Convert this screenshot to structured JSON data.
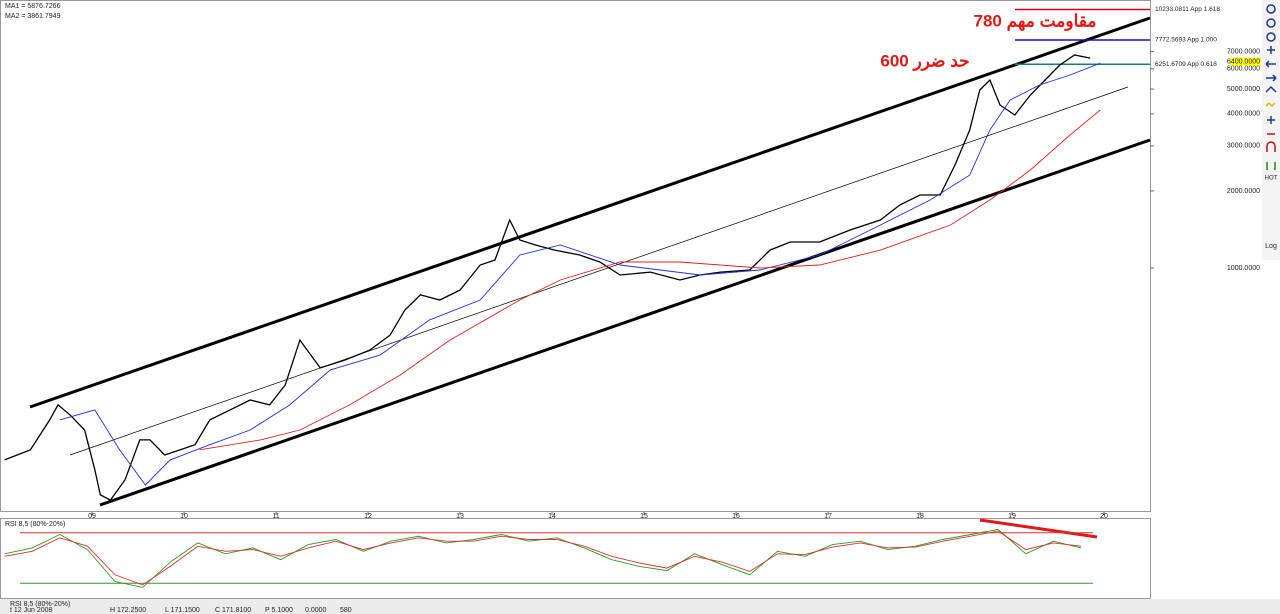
{
  "chart_data": [
    {
      "type": "line",
      "log_scale": true,
      "xlim": [
        2008,
        2020.5
      ],
      "xticks": [
        {
          "value": 2009,
          "label": "09"
        },
        {
          "value": 2010,
          "label": "10"
        },
        {
          "value": 2011,
          "label": "11"
        },
        {
          "value": 2012,
          "label": "12"
        },
        {
          "value": 2013,
          "label": "13"
        },
        {
          "value": 2014,
          "label": "14"
        },
        {
          "value": 2015,
          "label": "15"
        },
        {
          "value": 2016,
          "label": "16"
        },
        {
          "value": 2017,
          "label": "17"
        },
        {
          "value": 2018,
          "label": "18"
        },
        {
          "value": 2019,
          "label": "19"
        },
        {
          "value": 2020,
          "label": "20"
        }
      ],
      "ylim": [
        111.4,
        11140
      ],
      "yticks": [
        {
          "value": 1000,
          "label": "1000.0000"
        },
        {
          "value": 2000,
          "label": "2000.0000"
        },
        {
          "value": 3000,
          "label": "3000.0000"
        },
        {
          "value": 4000,
          "label": "4000.0000"
        },
        {
          "value": 5000,
          "label": "5000.0000"
        },
        {
          "value": 6000,
          "label": "6000.0000"
        },
        {
          "value": 7000,
          "label": "7000.0000"
        }
      ],
      "series": [
        {
          "color": "#000000",
          "x": [
            2008.05,
            2008.33,
            2008.54,
            2008.63,
            2008.76,
            2008.92,
            2009.03,
            2009.09,
            2009.2,
            2009.36,
            2009.52,
            2009.63,
            2009.79,
            2009.96,
            2010.12,
            2010.28,
            2010.5,
            2010.72,
            2010.93,
            2011.1,
            2011.26,
            2011.48,
            2011.75,
            2012.02,
            2012.24,
            2012.4,
            2012.57,
            2012.78,
            2013.0,
            2013.22,
            2013.38,
            2013.54,
            2013.65,
            2013.82,
            2014.03,
            2014.3,
            2014.52,
            2014.74,
            2015.07,
            2015.39,
            2015.61,
            2015.83,
            2016.15,
            2016.37,
            2016.59,
            2016.91,
            2017.24,
            2017.57,
            2017.78,
            2018.0,
            2018.22,
            2018.38,
            2018.54,
            2018.65,
            2018.76,
            2018.87,
            2019.03,
            2019.2,
            2019.36,
            2019.52,
            2019.68,
            2019.85
          ],
          "values": [
            178,
            195,
            255,
            292,
            267,
            233,
            163,
            130,
            124,
            149,
            213,
            213,
            186,
            195,
            204,
            255,
            279,
            305,
            292,
            349,
            523,
            407,
            437,
            478,
            547,
            685,
            785,
            750,
            820,
            1027,
            1075,
            1540,
            1286,
            1230,
            1175,
            1124,
            1055,
            939,
            964,
            898,
            939,
            964,
            982,
            1175,
            1263,
            1263,
            1407,
            1540,
            1762,
            1928,
            1928,
            2525,
            3459,
            4958,
            5423,
            4333,
            3960,
            4740,
            5423,
            6208,
            6792,
            6607
          ]
        },
        {
          "name": "MA1 = 5876.7266",
          "color": "#2030d0",
          "x": [
            2008.65,
            2009.03,
            2009.3,
            2009.58,
            2009.85,
            2010.28,
            2010.72,
            2011.15,
            2011.59,
            2012.13,
            2012.67,
            2013.22,
            2013.65,
            2014.09,
            2014.74,
            2015.61,
            2016.26,
            2016.91,
            2017.57,
            2018.11,
            2018.54,
            2018.76,
            2018.98,
            2019.3,
            2019.63,
            2019.96
          ],
          "values": [
            255,
            279,
            195,
            142,
            178,
            204,
            233,
            292,
            400,
            457,
            627,
            750,
            1124,
            1230,
            1027,
            939,
            982,
            1124,
            1472,
            1843,
            2307,
            3459,
            4533,
            5188,
            5672,
            6310
          ]
        },
        {
          "name": "MA2 = 3861.7949",
          "color": "#e02020",
          "x": [
            2010.17,
            2010.83,
            2011.26,
            2011.8,
            2012.35,
            2012.89,
            2013.65,
            2014.09,
            2014.74,
            2015.39,
            2016.26,
            2016.91,
            2017.57,
            2018.33,
            2018.76,
            2019.2,
            2019.63,
            2019.96
          ],
          "values": [
            195,
            213,
            233,
            292,
            382,
            523,
            750,
            898,
            1055,
            1055,
            1000,
            1027,
            1175,
            1472,
            1843,
            2414,
            3307,
            4142
          ]
        }
      ],
      "levels": [
        {
          "value": 10233.0811,
          "label": "10233.0811 App 1.618",
          "color": "#e00000"
        },
        {
          "value": 7772.5693,
          "label": "7772.5693 App 1.000",
          "color": "#1010c0"
        },
        {
          "value": 6251.6709,
          "label": "6251.6709 App 0.618",
          "color": "#108080"
        }
      ],
      "current_price": {
        "value": 6400,
        "label": "6400.0000"
      },
      "annotations": [
        "780 مقاومت مهم",
        "600 حد ضرر"
      ]
    },
    {
      "type": "line",
      "title": "RSI 8,5 (80%-20%)",
      "xlim": [
        2008,
        2020.5
      ],
      "ylim": [
        0,
        100
      ],
      "x": [
        2008.05,
        2008.35,
        2008.65,
        2008.95,
        2009.25,
        2009.55,
        2009.85,
        2010.15,
        2010.45,
        2010.75,
        2011.05,
        2011.35,
        2011.65,
        2011.95,
        2012.25,
        2012.55,
        2012.85,
        2013.15,
        2013.45,
        2013.75,
        2014.05,
        2014.35,
        2014.65,
        2014.95,
        2015.25,
        2015.55,
        2015.85,
        2016.15,
        2016.45,
        2016.75,
        2017.05,
        2017.35,
        2017.65,
        2017.95,
        2018.25,
        2018.55,
        2018.85,
        2019.15,
        2019.45,
        2019.75
      ],
      "levels": [
        {
          "value": 80,
          "color": "#e03030"
        },
        {
          "value": 20,
          "color": "#2a9a2a"
        }
      ],
      "series": [
        {
          "color": "#2a9a2a",
          "values": [
            55,
            62,
            78,
            60,
            22,
            15,
            45,
            68,
            55,
            62,
            48,
            66,
            72,
            58,
            70,
            76,
            68,
            72,
            78,
            70,
            74,
            62,
            48,
            40,
            35,
            55,
            42,
            30,
            58,
            52,
            66,
            70,
            60,
            64,
            72,
            78,
            84,
            55,
            70,
            62
          ]
        },
        {
          "color": "#e03030",
          "values": [
            52,
            58,
            74,
            64,
            30,
            18,
            40,
            64,
            58,
            60,
            52,
            62,
            70,
            60,
            68,
            74,
            70,
            70,
            76,
            72,
            72,
            64,
            52,
            44,
            38,
            52,
            45,
            34,
            55,
            54,
            63,
            68,
            62,
            63,
            70,
            76,
            82,
            60,
            68,
            64
          ]
        }
      ]
    }
  ],
  "status_bar": [
    "t 12 Jun 2008",
    "H 172.2500",
    "L 171.1500",
    "C 171.8100",
    "P 5.1000",
    "0.0000",
    "580"
  ],
  "toolbar": [
    "HOT",
    "Log"
  ]
}
